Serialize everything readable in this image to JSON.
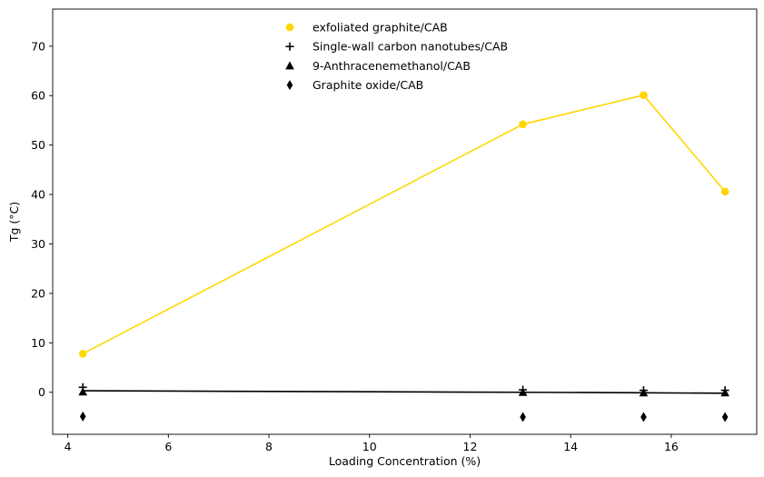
{
  "chart_data": {
    "type": "scatter",
    "title": "",
    "xlabel": "Loading Concentration (%)",
    "ylabel": "Tg (°C)",
    "xlim": [
      3.7,
      17.7
    ],
    "ylim": [
      -8.5,
      77.5
    ],
    "xticks": [
      4,
      6,
      8,
      10,
      12,
      14,
      16
    ],
    "yticks": [
      0,
      10,
      20,
      30,
      40,
      50,
      60,
      70
    ],
    "grid": false,
    "legend_position": "top-center",
    "series": [
      {
        "name": "exfoliated graphite/CAB",
        "marker": "circle",
        "color": "#FFD700",
        "x": [
          4.3,
          13.05,
          15.45,
          17.07
        ],
        "y": [
          7.8,
          54.2,
          60.1,
          40.6
        ]
      },
      {
        "name": "Single-wall carbon nanotubes/CAB",
        "marker": "plus",
        "color": "#000000",
        "x": [
          4.3,
          13.05,
          15.45,
          17.07
        ],
        "y": [
          1.0,
          0.5,
          0.4,
          0.4
        ]
      },
      {
        "name": "9-Anthracenemethanol/CAB",
        "marker": "triangle",
        "color": "#000000",
        "x": [
          4.3,
          13.05,
          15.45,
          17.07
        ],
        "y": [
          0.1,
          0.0,
          -0.1,
          -0.1
        ]
      },
      {
        "name": "Graphite oxide/CAB",
        "marker": "thin_diamond",
        "color": "#000000",
        "x": [
          4.3,
          13.05,
          15.45,
          17.07
        ],
        "y": [
          -4.9,
          -5.0,
          -5.0,
          -5.0
        ]
      }
    ],
    "lines": [
      {
        "color": "#FFD700",
        "x": [
          4.3,
          13.05,
          15.45,
          17.07
        ],
        "y": [
          7.8,
          54.2,
          60.1,
          40.6
        ]
      },
      {
        "color": "#000000",
        "x": [
          4.3,
          13.05,
          15.45,
          17.07
        ],
        "y": [
          0.3,
          0.0,
          -0.1,
          -0.2
        ]
      }
    ]
  }
}
